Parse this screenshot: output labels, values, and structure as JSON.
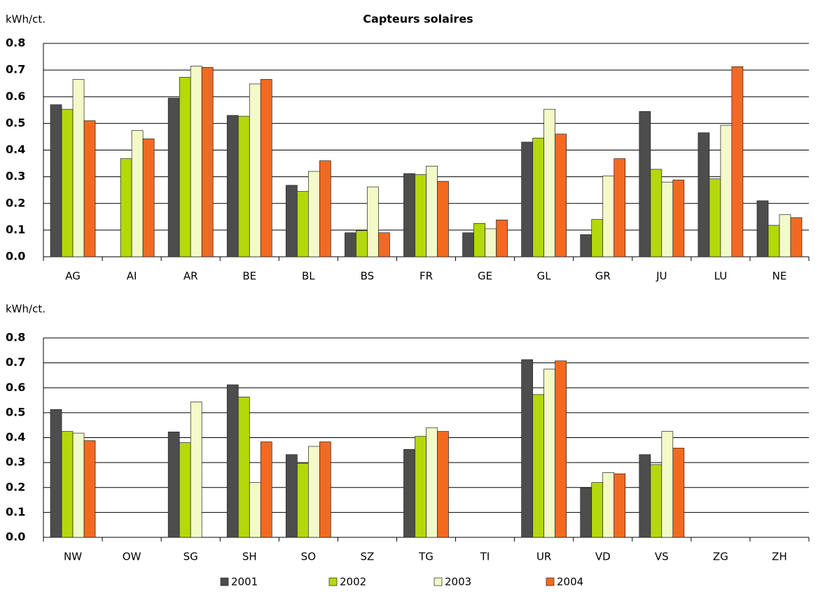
{
  "chart_data": [
    {
      "type": "bar",
      "title": "Capteurs solaires",
      "y_label": "kWh/ct.",
      "categories": [
        "AG",
        "AI",
        "AR",
        "BE",
        "BL",
        "BS",
        "FR",
        "GE",
        "GL",
        "GR",
        "JU",
        "LU",
        "NE"
      ],
      "series": [
        {
          "color": "#4d4d4d",
          "values": [
            0.57,
            null,
            0.595,
            0.53,
            0.268,
            0.09,
            0.312,
            0.09,
            0.43,
            0.083,
            0.545,
            0.465,
            0.21
          ]
        },
        {
          "color": "#b5d80b",
          "values": [
            0.553,
            0.368,
            0.673,
            0.527,
            0.245,
            0.098,
            0.308,
            0.125,
            0.445,
            0.14,
            0.328,
            0.292,
            0.118
          ]
        },
        {
          "color": "#f4f9c8",
          "values": [
            0.665,
            0.473,
            0.715,
            0.648,
            0.32,
            0.262,
            0.34,
            0.105,
            0.553,
            0.303,
            0.28,
            0.493,
            0.158
          ]
        },
        {
          "color": "#f26a22",
          "values": [
            0.51,
            0.442,
            0.71,
            0.665,
            0.36,
            0.09,
            0.283,
            0.138,
            0.46,
            0.368,
            0.288,
            0.713,
            0.147
          ]
        }
      ],
      "ylim": [
        0,
        0.8
      ],
      "yticks": [
        {
          "value": 0,
          "label": "0.0"
        },
        0.1,
        0.2,
        0.3,
        0.4,
        0.5,
        0.6,
        0.7,
        0.8
      ],
      "grid": true
    },
    {
      "type": "bar",
      "y_label": "kWh/ct.",
      "categories": [
        "NW",
        "OW",
        "SG",
        "SH",
        "SO",
        "SZ",
        "TG",
        "TI",
        "UR",
        "VD",
        "VS",
        "ZG",
        "ZH"
      ],
      "series": [
        {
          "name": "2001",
          "color": "#4d4d4d",
          "values": [
            0.513,
            null,
            0.423,
            0.612,
            0.332,
            null,
            0.353,
            null,
            0.713,
            0.198,
            0.332,
            null,
            null
          ]
        },
        {
          "name": "2002",
          "color": "#b5d80b",
          "values": [
            0.425,
            null,
            0.38,
            0.563,
            0.297,
            null,
            0.405,
            null,
            0.573,
            0.22,
            0.292,
            null,
            null
          ]
        },
        {
          "name": "2003",
          "color": "#f4f9c8",
          "values": [
            0.418,
            null,
            0.543,
            0.22,
            0.365,
            null,
            0.44,
            null,
            0.675,
            0.26,
            0.425,
            null,
            null
          ]
        },
        {
          "name": "2004",
          "color": "#f26a22",
          "values": [
            0.388,
            null,
            null,
            0.383,
            0.383,
            null,
            0.425,
            null,
            0.708,
            0.255,
            0.358,
            null,
            null
          ]
        }
      ],
      "ylim": [
        0,
        0.8
      ],
      "yticks": [
        {
          "value": 0,
          "label": "0.0"
        },
        0.1,
        0.2,
        0.3,
        0.4,
        0.5,
        0.6,
        0.7,
        0.8
      ],
      "grid": true
    }
  ]
}
